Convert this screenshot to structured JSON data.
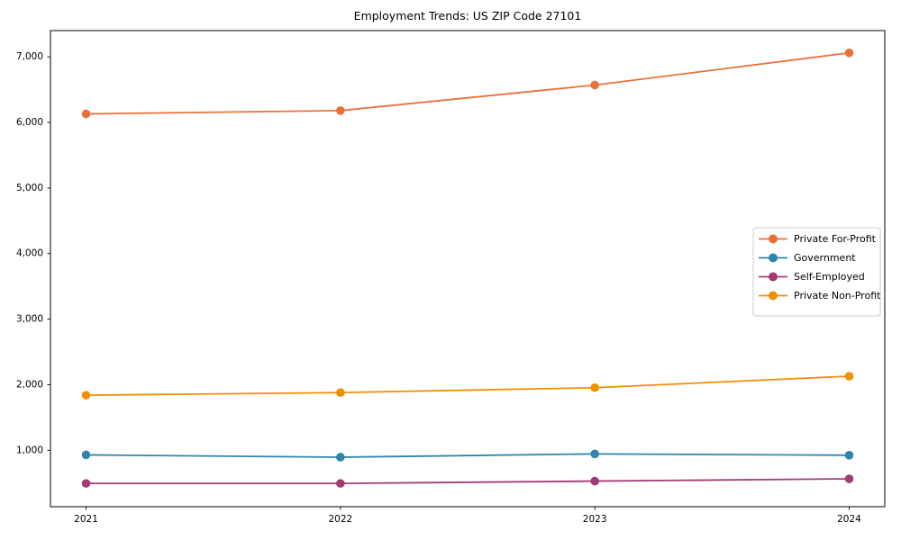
{
  "chart_data": {
    "type": "line",
    "title": "Employment Trends: US ZIP Code 27101",
    "x": [
      2021,
      2022,
      2023,
      2024
    ],
    "x_tick_labels": [
      "2021",
      "2022",
      "2023",
      "2024"
    ],
    "series": [
      {
        "name": "Private For-Profit",
        "color": "#e8713a",
        "values": [
          6130,
          6180,
          6570,
          7060
        ]
      },
      {
        "name": "Government",
        "color": "#2e86ab",
        "values": [
          930,
          895,
          945,
          925
        ]
      },
      {
        "name": "Self-Employed",
        "color": "#a23b72",
        "values": [
          495,
          495,
          530,
          565
        ]
      },
      {
        "name": "Private Non-Profit",
        "color": "#f18f01",
        "values": [
          1840,
          1880,
          1955,
          2130
        ]
      }
    ],
    "yticks": [
      1000,
      2000,
      3000,
      4000,
      5000,
      6000,
      7000
    ],
    "ytick_labels": [
      "1,000",
      "2,000",
      "3,000",
      "4,000",
      "5,000",
      "6,000",
      "7,000"
    ],
    "xlim": [
      2020.86,
      2024.14
    ],
    "ylim": [
      140,
      7400
    ],
    "grid": false,
    "legend": {
      "position": "middle-right",
      "entries": [
        "Private For-Profit",
        "Government",
        "Self-Employed",
        "Private Non-Profit"
      ]
    },
    "axis_color": "#000000",
    "legend_border_color": "#cccccc"
  }
}
